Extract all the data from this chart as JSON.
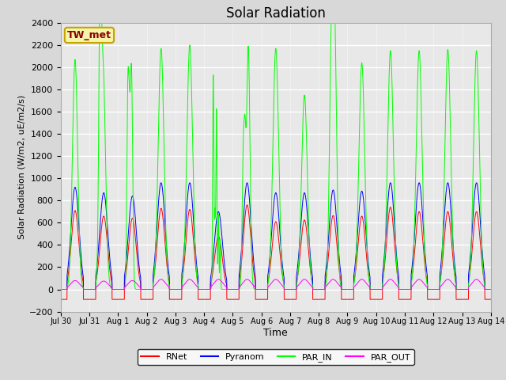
{
  "title": "Solar Radiation",
  "ylabel": "Solar Radiation (W/m2, uE/m2/s)",
  "xlabel": "Time",
  "ylim": [
    -200,
    2400
  ],
  "yticks": [
    -200,
    0,
    200,
    400,
    600,
    800,
    1000,
    1200,
    1400,
    1600,
    1800,
    2000,
    2200,
    2400
  ],
  "fig_bg_color": "#d8d8d8",
  "plot_bg_color": "#e8e8e8",
  "station_label": "TW_met",
  "station_label_color": "#8b0000",
  "station_box_facecolor": "#f5f5aa",
  "station_box_edgecolor": "#c8a000",
  "legend_entries": [
    "RNet",
    "Pyranom",
    "PAR_IN",
    "PAR_OUT"
  ],
  "line_colors": [
    "red",
    "blue",
    "lime",
    "magenta"
  ],
  "n_days": 15,
  "xtick_labels": [
    "Jul 30",
    "Jul 31",
    "Aug 1",
    "Aug 2",
    "Aug 3",
    "Aug 4",
    "Aug 5",
    "Aug 6",
    "Aug 7",
    "Aug 8",
    "Aug 9",
    "Aug 10",
    "Aug 11",
    "Aug 12",
    "Aug 13",
    "Aug 14"
  ],
  "grid_color": "white",
  "title_fontsize": 12,
  "ylabel_fontsize": 8,
  "xlabel_fontsize": 9,
  "tick_fontsize": 8,
  "xtick_fontsize": 7
}
